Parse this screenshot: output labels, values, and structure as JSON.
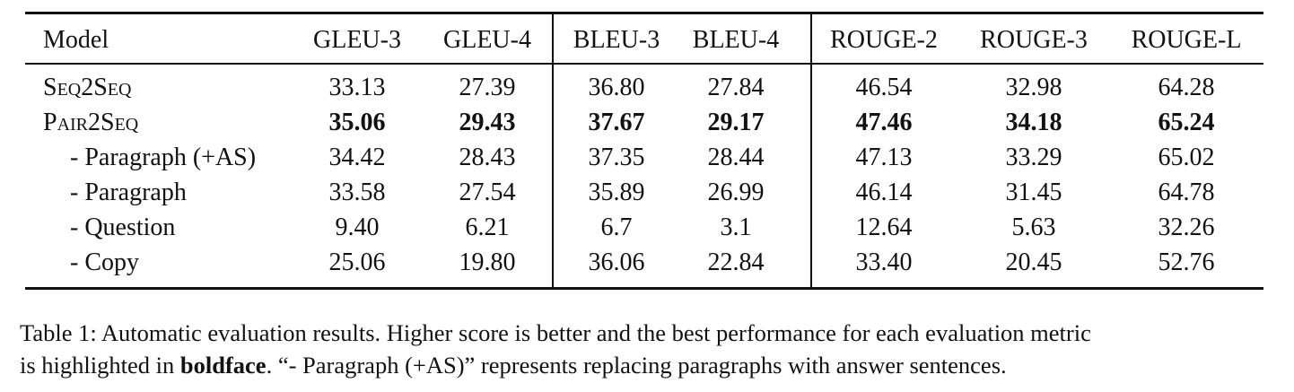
{
  "table": {
    "header": [
      "Model",
      "GLEU-3",
      "GLEU-4",
      "BLEU-3",
      "BLEU-4",
      "ROUGE-2",
      "ROUGE-3",
      "ROUGE-L"
    ],
    "rows": [
      {
        "model": "Seq2Seq",
        "small_caps": true,
        "values": [
          "33.13",
          "27.39",
          "36.80",
          "27.84",
          "46.54",
          "32.98",
          "64.28"
        ]
      },
      {
        "model": "Pair2Seq",
        "small_caps": true,
        "bold": true,
        "values": [
          "35.06",
          "29.43",
          "37.67",
          "29.17",
          "47.46",
          "34.18",
          "65.24"
        ]
      },
      {
        "model": "- Paragraph (+AS)",
        "indent": true,
        "values": [
          "34.42",
          "28.43",
          "37.35",
          "28.44",
          "47.13",
          "33.29",
          "65.02"
        ]
      },
      {
        "model": "- Paragraph",
        "indent": true,
        "values": [
          "33.58",
          "27.54",
          "35.89",
          "26.99",
          "46.14",
          "31.45",
          "64.78"
        ]
      },
      {
        "model": "- Question",
        "indent": true,
        "values": [
          "9.40",
          "6.21",
          "6.7",
          "3.1",
          "12.64",
          "5.63",
          "32.26"
        ]
      },
      {
        "model": "- Copy",
        "indent": true,
        "values": [
          "25.06",
          "19.80",
          "36.06",
          "22.84",
          "33.40",
          "20.45",
          "52.76"
        ]
      }
    ]
  },
  "caption": {
    "line1": "Table 1: Automatic evaluation results. Higher score is better and the best performance for each evaluation metric",
    "line2": [
      "is highlighted in ",
      "boldface",
      ". “- Paragraph (+AS)” represents replacing paragraphs with answer sentences."
    ]
  }
}
